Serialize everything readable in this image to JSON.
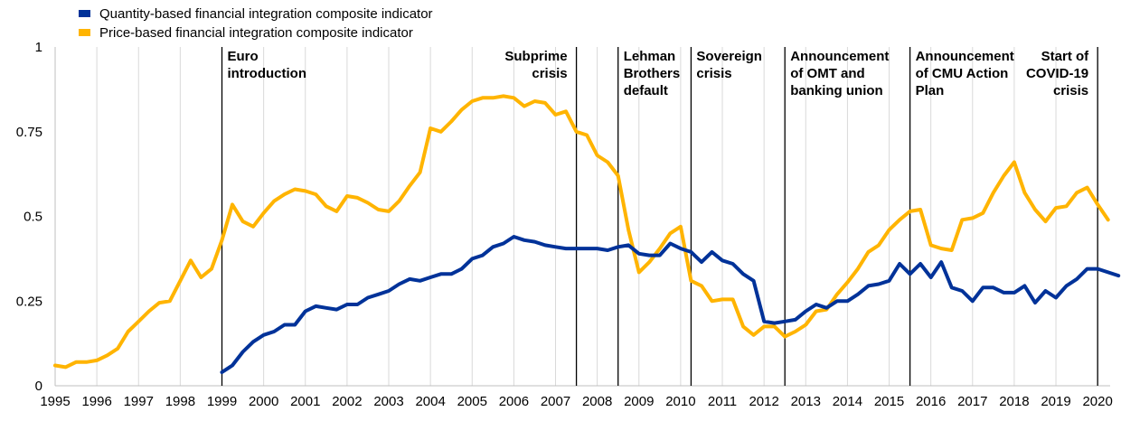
{
  "chart_data": {
    "type": "line",
    "title": "",
    "xlabel": "",
    "ylabel": "",
    "xlim": [
      1995,
      2020.3
    ],
    "ylim": [
      0,
      1
    ],
    "grid": {
      "vertical": true,
      "horizontal": false
    },
    "legend_position": "top-left",
    "x_ticks": [
      "1995",
      "1996",
      "1997",
      "1998",
      "1999",
      "2000",
      "2001",
      "2002",
      "2003",
      "2004",
      "2005",
      "2006",
      "2007",
      "2008",
      "2009",
      "2010",
      "2011",
      "2012",
      "2013",
      "2014",
      "2015",
      "2016",
      "2017",
      "2018",
      "2019",
      "2020"
    ],
    "y_ticks": [
      {
        "value": 0,
        "label": "0"
      },
      {
        "value": 0.25,
        "label": "0.25"
      },
      {
        "value": 0.5,
        "label": "0.5"
      },
      {
        "value": 0.75,
        "label": "0.75"
      },
      {
        "value": 1,
        "label": "1"
      }
    ],
    "series": [
      {
        "name": "Quantity-based financial integration composite indicator",
        "color": "#003299",
        "points": [
          [
            1999.0,
            0.04
          ],
          [
            1999.25,
            0.06
          ],
          [
            1999.5,
            0.1
          ],
          [
            1999.75,
            0.13
          ],
          [
            2000.0,
            0.15
          ],
          [
            2000.25,
            0.16
          ],
          [
            2000.5,
            0.18
          ],
          [
            2000.75,
            0.18
          ],
          [
            2001.0,
            0.22
          ],
          [
            2001.25,
            0.235
          ],
          [
            2001.5,
            0.23
          ],
          [
            2001.75,
            0.225
          ],
          [
            2002.0,
            0.24
          ],
          [
            2002.25,
            0.24
          ],
          [
            2002.5,
            0.26
          ],
          [
            2002.75,
            0.27
          ],
          [
            2003.0,
            0.28
          ],
          [
            2003.25,
            0.3
          ],
          [
            2003.5,
            0.315
          ],
          [
            2003.75,
            0.31
          ],
          [
            2004.0,
            0.32
          ],
          [
            2004.25,
            0.33
          ],
          [
            2004.5,
            0.33
          ],
          [
            2004.75,
            0.345
          ],
          [
            2005.0,
            0.375
          ],
          [
            2005.25,
            0.385
          ],
          [
            2005.5,
            0.41
          ],
          [
            2005.75,
            0.42
          ],
          [
            2006.0,
            0.44
          ],
          [
            2006.25,
            0.43
          ],
          [
            2006.5,
            0.425
          ],
          [
            2006.75,
            0.415
          ],
          [
            2007.0,
            0.41
          ],
          [
            2007.25,
            0.405
          ],
          [
            2007.5,
            0.405
          ],
          [
            2007.75,
            0.405
          ],
          [
            2008.0,
            0.405
          ],
          [
            2008.25,
            0.4
          ],
          [
            2008.5,
            0.41
          ],
          [
            2008.75,
            0.415
          ],
          [
            2009.0,
            0.39
          ],
          [
            2009.25,
            0.385
          ],
          [
            2009.5,
            0.385
          ],
          [
            2009.75,
            0.42
          ],
          [
            2010.0,
            0.405
          ],
          [
            2010.25,
            0.395
          ],
          [
            2010.5,
            0.365
          ],
          [
            2010.75,
            0.395
          ],
          [
            2011.0,
            0.37
          ],
          [
            2011.25,
            0.36
          ],
          [
            2011.5,
            0.33
          ],
          [
            2011.75,
            0.31
          ],
          [
            2012.0,
            0.19
          ],
          [
            2012.25,
            0.185
          ],
          [
            2012.5,
            0.19
          ],
          [
            2012.75,
            0.195
          ],
          [
            2013.0,
            0.22
          ],
          [
            2013.25,
            0.24
          ],
          [
            2013.5,
            0.23
          ],
          [
            2013.75,
            0.25
          ],
          [
            2014.0,
            0.25
          ],
          [
            2014.25,
            0.27
          ],
          [
            2014.5,
            0.295
          ],
          [
            2014.75,
            0.3
          ],
          [
            2015.0,
            0.31
          ],
          [
            2015.25,
            0.36
          ],
          [
            2015.5,
            0.33
          ],
          [
            2015.75,
            0.36
          ],
          [
            2016.0,
            0.32
          ],
          [
            2016.25,
            0.365
          ],
          [
            2016.5,
            0.29
          ],
          [
            2016.75,
            0.28
          ],
          [
            2017.0,
            0.25
          ],
          [
            2017.25,
            0.29
          ],
          [
            2017.5,
            0.29
          ],
          [
            2017.75,
            0.275
          ],
          [
            2018.0,
            0.275
          ],
          [
            2018.25,
            0.295
          ],
          [
            2018.5,
            0.245
          ],
          [
            2018.75,
            0.28
          ],
          [
            2019.0,
            0.26
          ],
          [
            2019.25,
            0.295
          ],
          [
            2019.5,
            0.315
          ],
          [
            2019.75,
            0.345
          ],
          [
            2020.0,
            0.345
          ],
          [
            2020.25,
            0.335
          ],
          [
            2020.5,
            0.325
          ]
        ]
      },
      {
        "name": "Price-based financial integration composite indicator",
        "color": "#FFB400",
        "points": [
          [
            1995.0,
            0.06
          ],
          [
            1995.25,
            0.055
          ],
          [
            1995.5,
            0.07
          ],
          [
            1995.75,
            0.07
          ],
          [
            1996.0,
            0.075
          ],
          [
            1996.25,
            0.09
          ],
          [
            1996.5,
            0.11
          ],
          [
            1996.75,
            0.16
          ],
          [
            1997.0,
            0.19
          ],
          [
            1997.25,
            0.22
          ],
          [
            1997.5,
            0.245
          ],
          [
            1997.75,
            0.25
          ],
          [
            1998.0,
            0.31
          ],
          [
            1998.25,
            0.37
          ],
          [
            1998.5,
            0.32
          ],
          [
            1998.75,
            0.345
          ],
          [
            1999.0,
            0.43
          ],
          [
            1999.25,
            0.535
          ],
          [
            1999.5,
            0.485
          ],
          [
            1999.75,
            0.47
          ],
          [
            2000.0,
            0.51
          ],
          [
            2000.25,
            0.545
          ],
          [
            2000.5,
            0.565
          ],
          [
            2000.75,
            0.58
          ],
          [
            2001.0,
            0.575
          ],
          [
            2001.25,
            0.565
          ],
          [
            2001.5,
            0.53
          ],
          [
            2001.75,
            0.515
          ],
          [
            2002.0,
            0.56
          ],
          [
            2002.25,
            0.555
          ],
          [
            2002.5,
            0.54
          ],
          [
            2002.75,
            0.52
          ],
          [
            2003.0,
            0.515
          ],
          [
            2003.25,
            0.545
          ],
          [
            2003.5,
            0.59
          ],
          [
            2003.75,
            0.63
          ],
          [
            2004.0,
            0.76
          ],
          [
            2004.25,
            0.75
          ],
          [
            2004.5,
            0.78
          ],
          [
            2004.75,
            0.815
          ],
          [
            2005.0,
            0.84
          ],
          [
            2005.25,
            0.85
          ],
          [
            2005.5,
            0.85
          ],
          [
            2005.75,
            0.855
          ],
          [
            2006.0,
            0.85
          ],
          [
            2006.25,
            0.825
          ],
          [
            2006.5,
            0.84
          ],
          [
            2006.75,
            0.835
          ],
          [
            2007.0,
            0.8
          ],
          [
            2007.25,
            0.81
          ],
          [
            2007.5,
            0.75
          ],
          [
            2007.75,
            0.74
          ],
          [
            2008.0,
            0.68
          ],
          [
            2008.25,
            0.66
          ],
          [
            2008.5,
            0.62
          ],
          [
            2008.75,
            0.46
          ],
          [
            2009.0,
            0.335
          ],
          [
            2009.25,
            0.365
          ],
          [
            2009.5,
            0.405
          ],
          [
            2009.75,
            0.45
          ],
          [
            2010.0,
            0.47
          ],
          [
            2010.25,
            0.31
          ],
          [
            2010.5,
            0.295
          ],
          [
            2010.75,
            0.25
          ],
          [
            2011.0,
            0.255
          ],
          [
            2011.25,
            0.255
          ],
          [
            2011.5,
            0.175
          ],
          [
            2011.75,
            0.15
          ],
          [
            2012.0,
            0.175
          ],
          [
            2012.25,
            0.175
          ],
          [
            2012.5,
            0.145
          ],
          [
            2012.75,
            0.16
          ],
          [
            2013.0,
            0.18
          ],
          [
            2013.25,
            0.22
          ],
          [
            2013.5,
            0.225
          ],
          [
            2013.75,
            0.27
          ],
          [
            2014.0,
            0.305
          ],
          [
            2014.25,
            0.345
          ],
          [
            2014.5,
            0.395
          ],
          [
            2014.75,
            0.415
          ],
          [
            2015.0,
            0.46
          ],
          [
            2015.25,
            0.49
          ],
          [
            2015.5,
            0.515
          ],
          [
            2015.75,
            0.52
          ],
          [
            2016.0,
            0.415
          ],
          [
            2016.25,
            0.405
          ],
          [
            2016.5,
            0.4
          ],
          [
            2016.75,
            0.49
          ],
          [
            2017.0,
            0.495
          ],
          [
            2017.25,
            0.51
          ],
          [
            2017.5,
            0.57
          ],
          [
            2017.75,
            0.62
          ],
          [
            2018.0,
            0.66
          ],
          [
            2018.25,
            0.57
          ],
          [
            2018.5,
            0.52
          ],
          [
            2018.75,
            0.485
          ],
          [
            2019.0,
            0.525
          ],
          [
            2019.25,
            0.53
          ],
          [
            2019.5,
            0.57
          ],
          [
            2019.75,
            0.585
          ],
          [
            2020.0,
            0.535
          ],
          [
            2020.25,
            0.49
          ]
        ]
      }
    ],
    "events": [
      {
        "x": 1999.0,
        "lines": [
          "Euro",
          "introduction"
        ],
        "align": "start"
      },
      {
        "x": 2007.5,
        "lines": [
          "Subprime",
          "crisis"
        ],
        "align": "end"
      },
      {
        "x": 2008.5,
        "lines": [
          "Lehman",
          "Brothers",
          "default"
        ],
        "align": "start"
      },
      {
        "x": 2010.25,
        "lines": [
          "Sovereign",
          "crisis"
        ],
        "align": "start"
      },
      {
        "x": 2012.5,
        "lines": [
          "Announcement",
          "of OMT and",
          "banking union"
        ],
        "align": "start"
      },
      {
        "x": 2015.5,
        "lines": [
          "Announcement",
          "of CMU Action",
          "Plan"
        ],
        "align": "start"
      },
      {
        "x": 2020.0,
        "lines": [
          "Start of",
          "COVID-19",
          "crisis"
        ],
        "align": "end"
      }
    ]
  }
}
